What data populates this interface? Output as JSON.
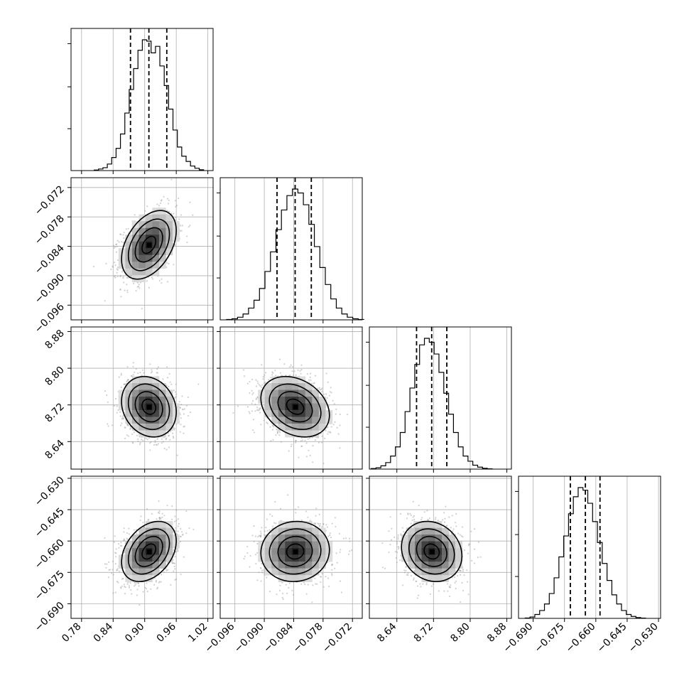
{
  "chart_data": {
    "type": "corner",
    "grid": true,
    "variables": [
      {
        "range": [
          0.76,
          1.03
        ],
        "ticks": [
          0.78,
          0.84,
          0.9,
          0.96,
          1.02
        ],
        "tick_labels": [
          "0.78",
          "0.84",
          "0.90",
          "0.96",
          "1.02"
        ],
        "quantiles": [
          0.873,
          0.908,
          0.942
        ],
        "mean": 0.908,
        "std": 0.026
      },
      {
        "range": [
          -0.099,
          -0.07
        ],
        "ticks": [
          -0.096,
          -0.09,
          -0.084,
          -0.078,
          -0.072
        ],
        "tick_labels": [
          "−0.096",
          "−0.090",
          "−0.084",
          "−0.078",
          "−0.072"
        ],
        "quantiles": [
          -0.0874,
          -0.0837,
          -0.0804
        ],
        "mean": -0.0837,
        "std": 0.0035
      },
      {
        "range": [
          8.58,
          8.89
        ],
        "ticks": [
          8.64,
          8.72,
          8.8,
          8.88
        ],
        "tick_labels": [
          "8.64",
          "8.72",
          "8.80",
          "8.88"
        ],
        "quantiles": [
          8.683,
          8.716,
          8.749
        ],
        "mean": 8.716,
        "std": 0.033
      },
      {
        "range": [
          -0.697,
          -0.629
        ],
        "ticks": [
          -0.69,
          -0.675,
          -0.66,
          -0.645,
          -0.63
        ],
        "tick_labels": [
          "−0.690",
          "−0.675",
          "−0.660",
          "−0.645",
          "−0.630"
        ],
        "quantiles": [
          -0.6722,
          -0.665,
          -0.658
        ],
        "mean": -0.665,
        "std": 0.0072
      }
    ],
    "correlations": [
      {
        "pair": [
          0,
          1
        ],
        "rho": 0.42
      },
      {
        "pair": [
          0,
          2
        ],
        "rho": -0.18
      },
      {
        "pair": [
          0,
          3
        ],
        "rho": 0.35
      },
      {
        "pair": [
          1,
          2
        ],
        "rho": -0.28
      },
      {
        "pair": [
          1,
          3
        ],
        "rho": 0.05
      },
      {
        "pair": [
          2,
          3
        ],
        "rho": -0.15
      }
    ],
    "histograms": [
      [
        0.004,
        0.012,
        0.022,
        0.05,
        0.1,
        0.17,
        0.28,
        0.44,
        0.62,
        0.78,
        0.92,
        1.0,
        0.99,
        0.9,
        0.95,
        0.8,
        0.65,
        0.47,
        0.31,
        0.18,
        0.11,
        0.07,
        0.035,
        0.018,
        0.006
      ],
      [
        0.003,
        0.008,
        0.02,
        0.045,
        0.09,
        0.15,
        0.24,
        0.37,
        0.52,
        0.69,
        0.84,
        0.95,
        1.0,
        0.97,
        0.88,
        0.73,
        0.56,
        0.4,
        0.27,
        0.16,
        0.09,
        0.045,
        0.02,
        0.008,
        0.003
      ],
      [
        0.004,
        0.01,
        0.025,
        0.05,
        0.1,
        0.17,
        0.28,
        0.44,
        0.62,
        0.8,
        0.95,
        1.0,
        0.97,
        0.88,
        0.74,
        0.58,
        0.42,
        0.28,
        0.17,
        0.1,
        0.06,
        0.03,
        0.015,
        0.006,
        0.002
      ],
      [
        0.003,
        0.01,
        0.03,
        0.06,
        0.11,
        0.19,
        0.31,
        0.47,
        0.63,
        0.8,
        0.93,
        1.0,
        0.98,
        0.88,
        0.74,
        0.58,
        0.42,
        0.29,
        0.18,
        0.11,
        0.06,
        0.03,
        0.015,
        0.006,
        0.002
      ]
    ],
    "contour_levels_sigma": [
      0.5,
      1.0,
      1.5,
      2.0
    ],
    "scatter_points_per_panel": 1300
  }
}
